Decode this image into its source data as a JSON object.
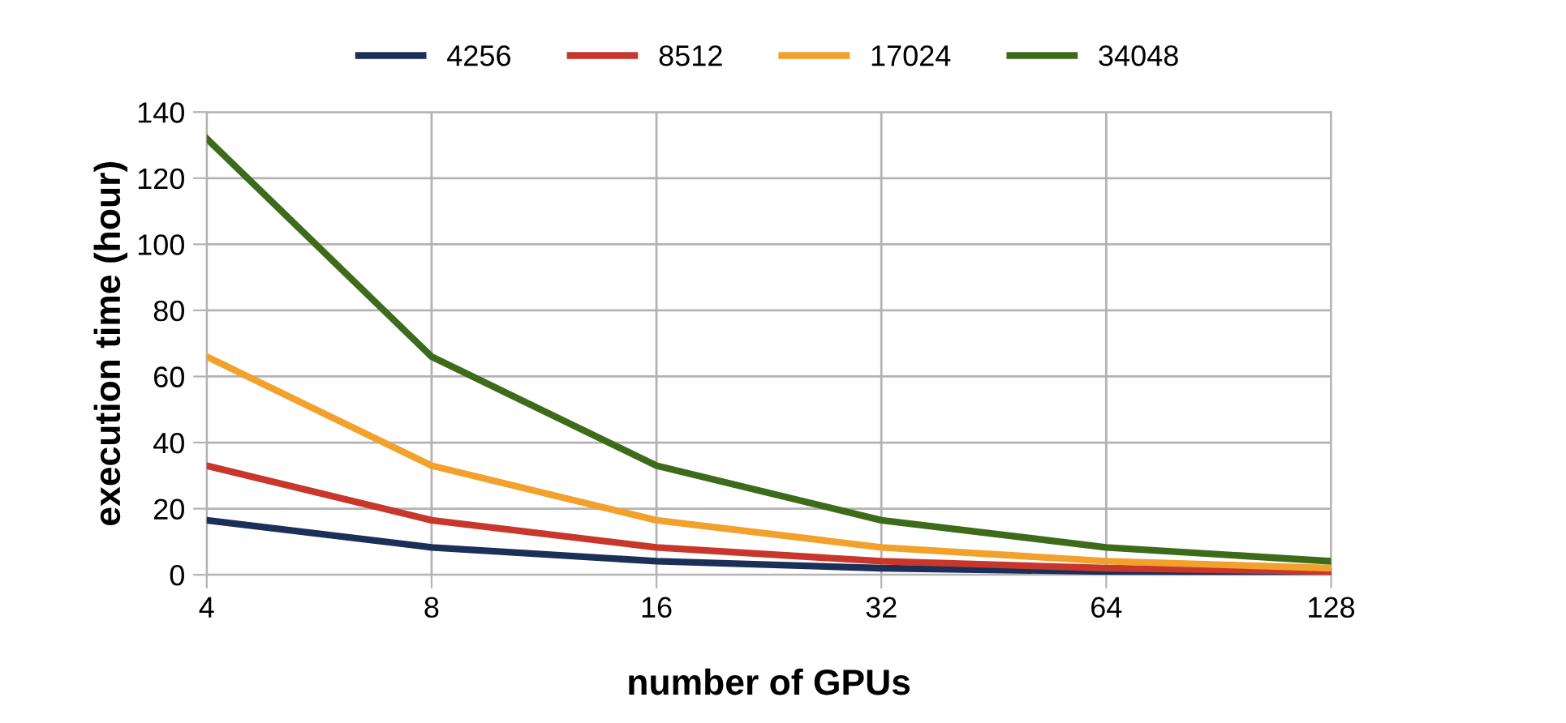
{
  "chart_data": {
    "type": "line",
    "xlabel": "number of GPUs",
    "ylabel": "execution time (hour)",
    "categories": [
      "4",
      "8",
      "16",
      "32",
      "64",
      "128"
    ],
    "series": [
      {
        "name": "4256",
        "color": "#1b2f58",
        "values": [
          16.5,
          8.3,
          4.1,
          2,
          1,
          0.5
        ]
      },
      {
        "name": "8512",
        "color": "#c9372c",
        "values": [
          33,
          16.5,
          8.3,
          4.1,
          2,
          1
        ]
      },
      {
        "name": "17024",
        "color": "#f2a12c",
        "values": [
          66,
          33,
          16.5,
          8.3,
          4.1,
          2
        ]
      },
      {
        "name": "34048",
        "color": "#3e6b1a",
        "values": [
          132,
          66,
          33,
          16.5,
          8.3,
          4.1
        ]
      }
    ],
    "ylim": [
      0,
      140
    ],
    "yticks": [
      0,
      20,
      40,
      60,
      80,
      100,
      120,
      140
    ],
    "grid": true,
    "legend": "top",
    "marker": "none",
    "line_style": "solid"
  }
}
